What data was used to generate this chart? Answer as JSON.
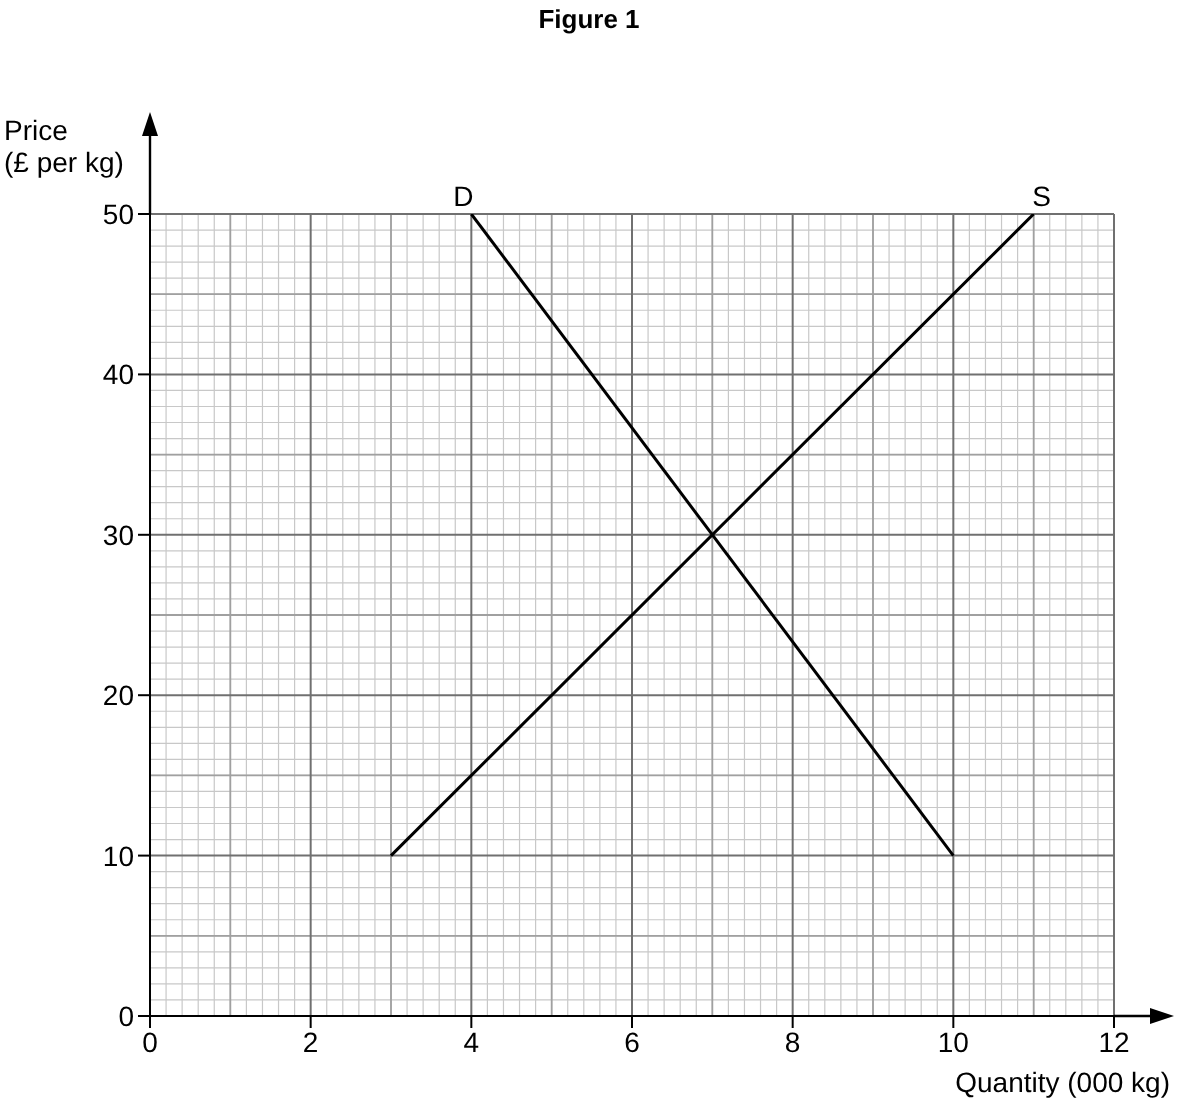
{
  "chart_data": {
    "type": "line",
    "title": "Figure 1",
    "xlabel": "Quantity (000 kg)",
    "ylabel": "Price\n(£ per kg)",
    "xlim": [
      0,
      12
    ],
    "xticks": [
      0,
      2,
      4,
      6,
      8,
      10,
      12
    ],
    "ylim": [
      0,
      50
    ],
    "yticks": [
      0,
      10,
      20,
      30,
      40,
      50
    ],
    "series": [
      {
        "name": "D",
        "color": "#000000",
        "x": [
          4,
          10
        ],
        "values": [
          50,
          10
        ]
      },
      {
        "name": "S",
        "color": "#000000",
        "x": [
          3,
          11
        ],
        "values": [
          10,
          50
        ]
      }
    ],
    "grid": true,
    "legend": false,
    "marker": "none",
    "line_style": "solid"
  }
}
